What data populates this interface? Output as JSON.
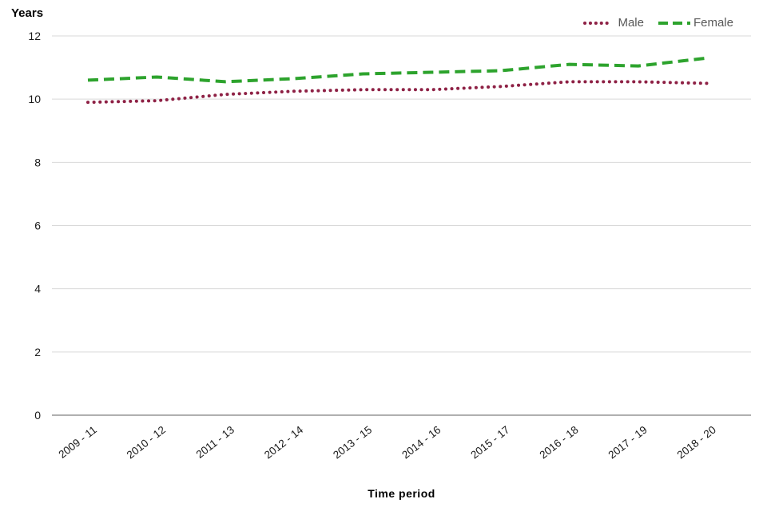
{
  "chart_data": {
    "type": "line",
    "title": "Years",
    "xlabel": "Time period",
    "ylabel": "Years",
    "ylim": [
      0,
      12
    ],
    "yticks": [
      0,
      2,
      4,
      6,
      8,
      10,
      12
    ],
    "grid": true,
    "legend_position": "top-right",
    "categories": [
      "2009 - 11",
      "2010 - 12",
      "2011 - 13",
      "2012 - 14",
      "2013 - 15",
      "2014 - 16",
      "2015 - 17",
      "2016 - 18",
      "2017 - 19",
      "2018 - 20"
    ],
    "series": [
      {
        "name": "Male",
        "color": "#8e2145",
        "style": "dotted",
        "values": [
          9.9,
          9.95,
          10.15,
          10.25,
          10.3,
          10.3,
          10.4,
          10.55,
          10.55,
          10.5
        ]
      },
      {
        "name": "Female",
        "color": "#2da32d",
        "style": "dashed",
        "values": [
          10.6,
          10.7,
          10.55,
          10.65,
          10.8,
          10.85,
          10.9,
          11.1,
          11.05,
          11.3
        ]
      }
    ],
    "colors": {
      "gridline": "#d9d9d9",
      "axis_line": "#808080",
      "tick_label": "#1a1a1a"
    }
  }
}
